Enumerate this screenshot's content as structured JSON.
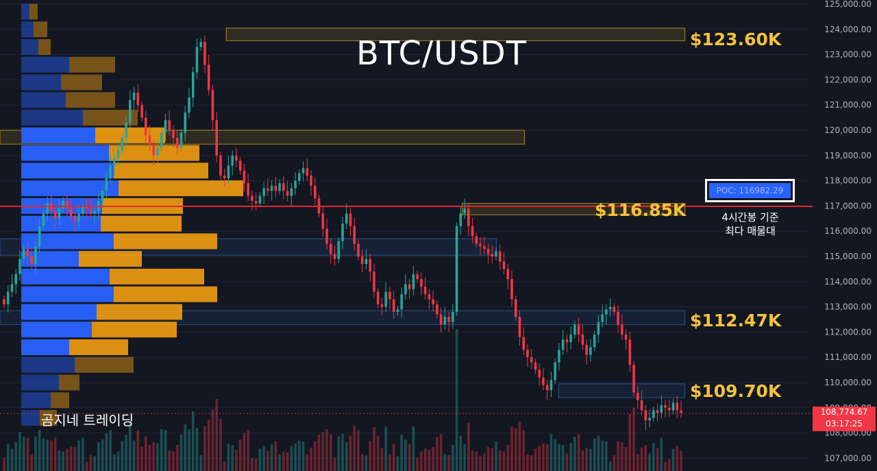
{
  "chart_data": {
    "type": "candlestick",
    "title": "BTC/USDT",
    "y_axis": {
      "range": [
        106750,
        125200
      ],
      "ticks": [
        "125,000.00",
        "124,000.00",
        "123,000.00",
        "122,000.00",
        "121,000.00",
        "120,000.00",
        "119,000.00",
        "118,000.00",
        "117,000.00",
        "116,000.00",
        "115,000.00",
        "114,000.00",
        "113,000.00",
        "112,000.00",
        "111,000.00",
        "110,000.00",
        "109,000.00",
        "108,000.00",
        "107,000.00"
      ],
      "tick_values": [
        125000,
        124000,
        123000,
        122000,
        121000,
        120000,
        119000,
        118000,
        117000,
        116000,
        115000,
        114000,
        113000,
        112000,
        111000,
        110000,
        109000,
        108000,
        107000
      ]
    },
    "closes": [
      113100,
      113600,
      113900,
      114300,
      114900,
      115300,
      115000,
      114700,
      115400,
      116200,
      116700,
      117100,
      116800,
      116500,
      116900,
      117200,
      116900,
      116600,
      116400,
      116700,
      117000,
      116900,
      116700,
      116800,
      117200,
      117600,
      118100,
      118600,
      118900,
      119200,
      119700,
      120300,
      121200,
      121500,
      121000,
      120500,
      119800,
      119400,
      119000,
      119300,
      119900,
      120400,
      120000,
      119700,
      119300,
      119900,
      120700,
      121300,
      122300,
      123300,
      123500,
      122600,
      121600,
      120400,
      119000,
      118200,
      118100,
      118600,
      119000,
      118800,
      118400,
      117900,
      117400,
      117200,
      117100,
      117400,
      117700,
      117600,
      117800,
      117600,
      117900,
      117600,
      117400,
      117700,
      118000,
      118300,
      118500,
      118200,
      117800,
      117300,
      116700,
      116100,
      115500,
      115100,
      114900,
      115600,
      116300,
      116700,
      116200,
      115500,
      115000,
      114700,
      114900,
      114400,
      113600,
      113100,
      113000,
      113600,
      113300,
      112800,
      112900,
      113500,
      113900,
      113700,
      114300,
      114100,
      113800,
      113500,
      113300,
      113100,
      112700,
      112300,
      112600,
      112400,
      112800,
      116200,
      116700,
      116900,
      116200,
      115800,
      115500,
      115400,
      115300,
      115100,
      115000,
      115200,
      114800,
      114500,
      114100,
      113300,
      112600,
      111800,
      111300,
      111000,
      110800,
      110500,
      110200,
      109900,
      109700,
      110100,
      110800,
      111300,
      111700,
      111600,
      111900,
      112300,
      111900,
      111500,
      111100,
      111400,
      111900,
      112400,
      112700,
      112900,
      113000,
      112800,
      112300,
      111900,
      111700,
      110700,
      109600,
      109300,
      108900,
      108500,
      108600,
      108900,
      108800,
      109100,
      109000,
      108900,
      109200,
      108900,
      108800
    ],
    "volume_profile": [
      {
        "price": 124700,
        "buy": 12,
        "sell": 12
      },
      {
        "price": 124000,
        "buy": 18,
        "sell": 20
      },
      {
        "price": 123300,
        "buy": 25,
        "sell": 18
      },
      {
        "price": 122600,
        "buy": 70,
        "sell": 67
      },
      {
        "price": 121900,
        "buy": 58,
        "sell": 60
      },
      {
        "price": 121200,
        "buy": 65,
        "sell": 72
      },
      {
        "price": 120500,
        "buy": 90,
        "sell": 80
      },
      {
        "price": 119800,
        "buy": 108,
        "sell": 102
      },
      {
        "price": 119100,
        "buy": 128,
        "sell": 132
      },
      {
        "price": 118400,
        "buy": 135,
        "sell": 138
      },
      {
        "price": 117700,
        "buy": 142,
        "sell": 182
      },
      {
        "price": 117000,
        "buy": 118,
        "sell": 118
      },
      {
        "price": 116300,
        "buy": 116,
        "sell": 118
      },
      {
        "price": 115600,
        "buy": 135,
        "sell": 151
      },
      {
        "price": 114900,
        "buy": 84,
        "sell": 92
      },
      {
        "price": 114200,
        "buy": 129,
        "sell": 138
      },
      {
        "price": 113500,
        "buy": 135,
        "sell": 151
      },
      {
        "price": 112800,
        "buy": 110,
        "sell": 125
      },
      {
        "price": 112100,
        "buy": 103,
        "sell": 124
      },
      {
        "price": 111400,
        "buy": 70,
        "sell": 86
      },
      {
        "price": 110700,
        "buy": 78,
        "sell": 86
      },
      {
        "price": 110000,
        "buy": 55,
        "sell": 30
      },
      {
        "price": 109300,
        "buy": 43,
        "sell": 27
      },
      {
        "price": 108600,
        "buy": 27,
        "sell": 25
      }
    ],
    "zones": [
      {
        "y_low": 123550,
        "y_high": 124050,
        "x_start": 0.258,
        "x_end": 0.781,
        "style": "yellow"
      },
      {
        "y_low": 119450,
        "y_high": 120000,
        "x_start": 0.0,
        "x_end": 0.598,
        "style": "yellow"
      },
      {
        "y_low": 116650,
        "y_high": 117100,
        "x_start": 0.527,
        "x_end": 0.781,
        "style": "yellow"
      },
      {
        "y_low": 115050,
        "y_high": 115700,
        "x_start": 0.0,
        "x_end": 0.566,
        "style": "blue"
      },
      {
        "y_low": 112300,
        "y_high": 112850,
        "x_start": 0.0,
        "x_end": 0.781,
        "style": "blue"
      },
      {
        "y_low": 109400,
        "y_high": 109950,
        "x_start": 0.637,
        "x_end": 0.781,
        "style": "blue"
      }
    ],
    "level_labels": [
      "$123.60K",
      "$116.85K",
      "$112.47K",
      "$109.70K"
    ],
    "level_values": [
      123600,
      116850,
      112470,
      109700
    ],
    "poc_label": "POC: 116982.29",
    "poc_value": 116982.29,
    "poc_note": [
      "4시간봉 기준",
      "최다 매물대"
    ],
    "current_price": "108,774.67",
    "current_price_value": 108774.67,
    "countdown": "03:17:25",
    "colors": {
      "background": "#131722",
      "up": "#26a69a",
      "down": "#f23645",
      "poc": "#e0282d",
      "zone_yellow": "#c9a227",
      "zone_blue": "#2f5fa8",
      "vp_buy": "#2962ff",
      "vp_sell": "#f29d11",
      "level_text": "#f5c23b",
      "grid": "#1f2430"
    }
  },
  "watermark": "곰지네 트레이딩"
}
